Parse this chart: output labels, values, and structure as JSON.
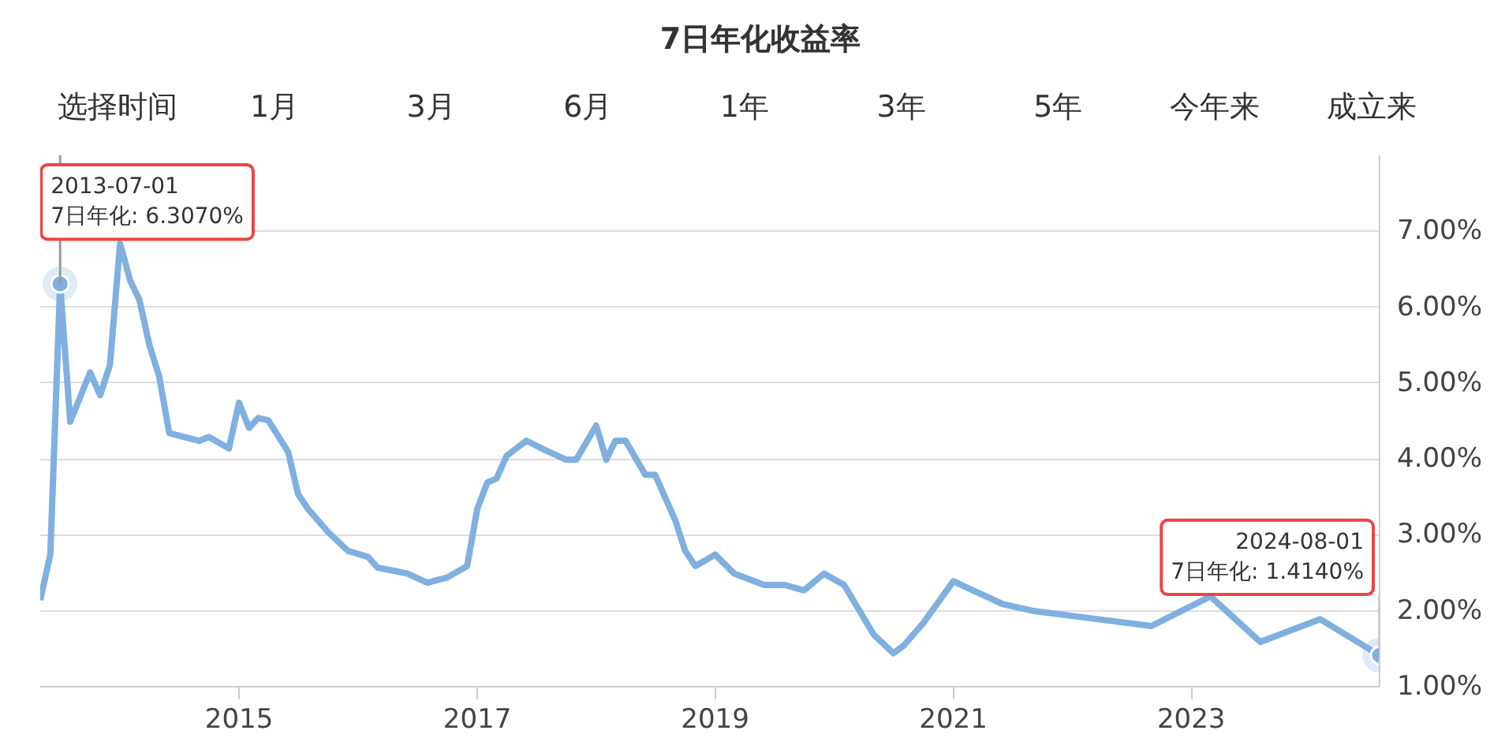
{
  "chart_data": {
    "type": "line",
    "title": "7日年化收益率",
    "x": [
      "2013-05",
      "2013-06",
      "2013-07-01",
      "2013-08",
      "2013-10",
      "2013-11",
      "2013-12",
      "2014-01",
      "2014-02",
      "2014-03",
      "2014-04",
      "2014-05",
      "2014-06",
      "2014-09",
      "2014-10",
      "2014-12",
      "2015-01",
      "2015-02",
      "2015-03",
      "2015-04",
      "2015-06",
      "2015-07",
      "2015-08",
      "2015-10",
      "2015-12",
      "2016-02",
      "2016-03",
      "2016-06",
      "2016-08",
      "2016-10",
      "2016-12",
      "2017-01",
      "2017-02",
      "2017-03",
      "2017-04",
      "2017-05",
      "2017-06",
      "2017-08",
      "2017-10",
      "2017-11",
      "2018-01",
      "2018-02",
      "2018-03",
      "2018-04",
      "2018-06",
      "2018-07",
      "2018-09",
      "2018-10",
      "2018-11",
      "2019-01",
      "2019-03",
      "2019-06",
      "2019-08",
      "2019-10",
      "2019-12",
      "2020-02",
      "2020-05",
      "2020-07",
      "2020-08",
      "2020-10",
      "2021-01",
      "2021-03",
      "2021-06",
      "2021-09",
      "2022-03",
      "2022-09",
      "2023-03",
      "2023-08",
      "2024-02",
      "2024-08-01"
    ],
    "series": [
      {
        "color": "#7fb0e0",
        "values": [
          2.14,
          2.74,
          6.307,
          4.49,
          5.14,
          4.84,
          5.24,
          6.84,
          6.35,
          6.1,
          5.5,
          5.09,
          4.34,
          4.24,
          4.29,
          4.14,
          4.74,
          4.41,
          4.54,
          4.51,
          4.09,
          3.54,
          3.34,
          3.04,
          2.79,
          2.71,
          2.57,
          2.49,
          2.37,
          2.44,
          2.59,
          3.34,
          3.69,
          3.74,
          4.04,
          4.14,
          4.24,
          4.11,
          3.99,
          3.99,
          4.44,
          3.99,
          4.24,
          4.24,
          3.79,
          3.79,
          3.19,
          2.79,
          2.59,
          2.74,
          2.49,
          2.34,
          2.34,
          2.27,
          2.49,
          2.34,
          1.69,
          1.44,
          1.54,
          1.84,
          2.39,
          2.27,
          2.09,
          2.0,
          1.9,
          1.8,
          2.19,
          1.59,
          1.89,
          1.414
        ]
      }
    ],
    "xlim": [
      "2013-05-01",
      "2024-08-01"
    ],
    "xticks": [
      "2015",
      "2017",
      "2019",
      "2021",
      "2023"
    ],
    "ylim": [
      1,
      8
    ],
    "yticks": [
      {
        "value": 1,
        "label": "1.00%"
      },
      {
        "value": 2,
        "label": "2.00%"
      },
      {
        "value": 3,
        "label": "3.00%"
      },
      {
        "value": 4,
        "label": "4.00%"
      },
      {
        "value": 5,
        "label": "5.00%"
      },
      {
        "value": 6,
        "label": "6.00%"
      },
      {
        "value": 7,
        "label": "7.00%"
      }
    ],
    "grid": "y",
    "annotations": [
      "选择时间",
      "1月",
      "3月",
      "6月",
      "1年",
      "3年",
      "5年",
      "今年来",
      "成立来",
      {
        "text": "2013-07-01\n7日年化: 6.3070%",
        "x": "2013-07-01",
        "y": 6.307
      },
      {
        "text": "2024-08-01\n7日年化: 1.4140%",
        "x": "2024-08-01",
        "y": 1.414
      }
    ]
  }
}
